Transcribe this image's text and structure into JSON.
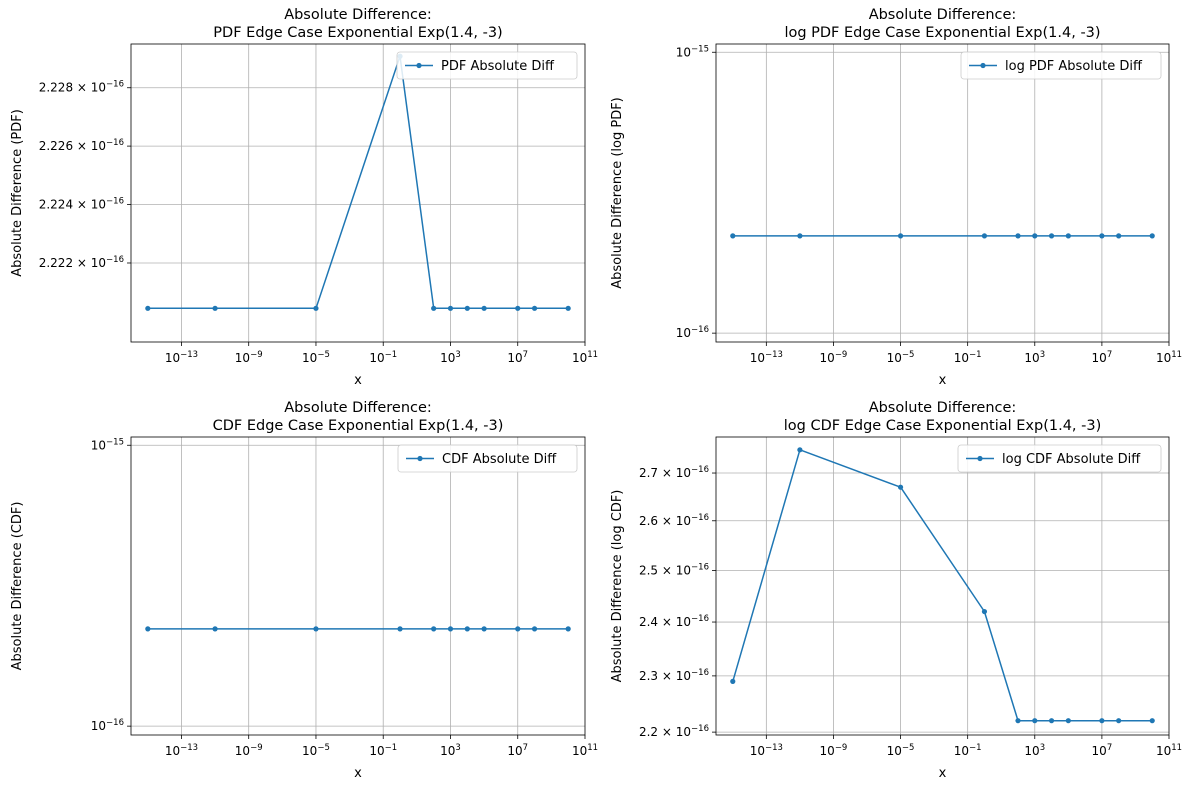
{
  "chart_data": [
    {
      "type": "line",
      "title_line1": "Absolute Difference:",
      "title_line2": "PDF Edge Case Exponential Exp(1.4, -3)",
      "xlabel": "x",
      "ylabel": "Absolute Difference (PDF)",
      "xscale": "log",
      "yscale": "log",
      "xlim": [
        1e-16,
        100000000000.0
      ],
      "ylim": [
        2.2193e-16,
        2.2295e-16
      ],
      "x_ticks": [
        {
          "value": 1e-13,
          "base": "10",
          "exp": "−13"
        },
        {
          "value": 1e-09,
          "base": "10",
          "exp": "−9"
        },
        {
          "value": 1e-05,
          "base": "10",
          "exp": "−5"
        },
        {
          "value": 0.1,
          "base": "10",
          "exp": "−1"
        },
        {
          "value": 1000,
          "base": "10",
          "exp": "3"
        },
        {
          "value": 10000000.0,
          "base": "10",
          "exp": "7"
        },
        {
          "value": 100000000000.0,
          "base": "10",
          "exp": "11"
        }
      ],
      "y_ticks": [
        {
          "value": 2.222e-16,
          "mant": "2.222 × ",
          "base": "10",
          "exp": "−16"
        },
        {
          "value": 2.224e-16,
          "mant": "2.224 × ",
          "base": "10",
          "exp": "−16"
        },
        {
          "value": 2.226e-16,
          "mant": "2.226 × ",
          "base": "10",
          "exp": "−16"
        },
        {
          "value": 2.228e-16,
          "mant": "2.228 × ",
          "base": "10",
          "exp": "−16"
        }
      ],
      "legend": "top-right",
      "grid": true,
      "series": [
        {
          "name": "PDF Absolute Diff",
          "color": "#1f77b4",
          "x": [
            1e-15,
            1e-11,
            1e-05,
            1,
            100,
            1000,
            10000,
            100000,
            10000000.0,
            100000000.0,
            10000000000.0
          ],
          "y": [
            2.22045e-16,
            2.22045e-16,
            2.22045e-16,
            2.22908e-16,
            2.22045e-16,
            2.22045e-16,
            2.22045e-16,
            2.22045e-16,
            2.22045e-16,
            2.22045e-16,
            2.22045e-16
          ]
        }
      ]
    },
    {
      "type": "line",
      "title_line1": "Absolute Difference:",
      "title_line2": "log PDF Edge Case Exponential Exp(1.4, -3)",
      "xlabel": "x",
      "ylabel": "Absolute Difference (log PDF)",
      "xscale": "log",
      "yscale": "log",
      "xlim": [
        1e-16,
        100000000000.0
      ],
      "ylim": [
        9.3e-17,
        1.07e-15
      ],
      "x_ticks": [
        {
          "value": 1e-13,
          "base": "10",
          "exp": "−13"
        },
        {
          "value": 1e-09,
          "base": "10",
          "exp": "−9"
        },
        {
          "value": 1e-05,
          "base": "10",
          "exp": "−5"
        },
        {
          "value": 0.1,
          "base": "10",
          "exp": "−1"
        },
        {
          "value": 1000,
          "base": "10",
          "exp": "3"
        },
        {
          "value": 10000000.0,
          "base": "10",
          "exp": "7"
        },
        {
          "value": 100000000000.0,
          "base": "10",
          "exp": "11"
        }
      ],
      "y_ticks": [
        {
          "value": 1e-16,
          "mant": "",
          "base": "10",
          "exp": "−16"
        },
        {
          "value": 1e-15,
          "mant": "",
          "base": "10",
          "exp": "−15"
        }
      ],
      "legend": "top-right",
      "grid": true,
      "series": [
        {
          "name": "log PDF Absolute Diff",
          "color": "#1f77b4",
          "x": [
            1e-15,
            1e-11,
            1e-05,
            1,
            100,
            1000,
            10000,
            100000,
            10000000.0,
            100000000.0,
            10000000000.0
          ],
          "y": [
            2.22e-16,
            2.22e-16,
            2.22e-16,
            2.22e-16,
            2.22e-16,
            2.22e-16,
            2.22e-16,
            2.22e-16,
            2.22e-16,
            2.22e-16,
            2.22e-16
          ]
        }
      ]
    },
    {
      "type": "line",
      "title_line1": "Absolute Difference:",
      "title_line2": "CDF Edge Case Exponential Exp(1.4, -3)",
      "xlabel": "x",
      "ylabel": "Absolute Difference (CDF)",
      "xscale": "log",
      "yscale": "log",
      "xlim": [
        1e-16,
        100000000000.0
      ],
      "ylim": [
        9.3e-17,
        1.07e-15
      ],
      "x_ticks": [
        {
          "value": 1e-13,
          "base": "10",
          "exp": "−13"
        },
        {
          "value": 1e-09,
          "base": "10",
          "exp": "−9"
        },
        {
          "value": 1e-05,
          "base": "10",
          "exp": "−5"
        },
        {
          "value": 0.1,
          "base": "10",
          "exp": "−1"
        },
        {
          "value": 1000,
          "base": "10",
          "exp": "3"
        },
        {
          "value": 10000000.0,
          "base": "10",
          "exp": "7"
        },
        {
          "value": 100000000000.0,
          "base": "10",
          "exp": "11"
        }
      ],
      "y_ticks": [
        {
          "value": 1e-16,
          "mant": "",
          "base": "10",
          "exp": "−16"
        },
        {
          "value": 1e-15,
          "mant": "",
          "base": "10",
          "exp": "−15"
        }
      ],
      "legend": "top-right",
      "grid": true,
      "series": [
        {
          "name": "CDF Absolute Diff",
          "color": "#1f77b4",
          "x": [
            1e-15,
            1e-11,
            1e-05,
            1,
            100,
            1000,
            10000,
            100000,
            10000000.0,
            100000000.0,
            10000000000.0
          ],
          "y": [
            2.22e-16,
            2.22e-16,
            2.22e-16,
            2.22e-16,
            2.22e-16,
            2.22e-16,
            2.22e-16,
            2.22e-16,
            2.22e-16,
            2.22e-16,
            2.22e-16
          ]
        }
      ]
    },
    {
      "type": "line",
      "title_line1": "Absolute Difference:",
      "title_line2": "log CDF Edge Case Exponential Exp(1.4, -3)",
      "xlabel": "x",
      "ylabel": "Absolute Difference (log CDF)",
      "xscale": "log",
      "yscale": "log",
      "xlim": [
        1e-16,
        100000000000.0
      ],
      "ylim": [
        2.195e-16,
        2.778e-16
      ],
      "x_ticks": [
        {
          "value": 1e-13,
          "base": "10",
          "exp": "−13"
        },
        {
          "value": 1e-09,
          "base": "10",
          "exp": "−9"
        },
        {
          "value": 1e-05,
          "base": "10",
          "exp": "−5"
        },
        {
          "value": 0.1,
          "base": "10",
          "exp": "−1"
        },
        {
          "value": 1000,
          "base": "10",
          "exp": "3"
        },
        {
          "value": 10000000.0,
          "base": "10",
          "exp": "7"
        },
        {
          "value": 100000000000.0,
          "base": "10",
          "exp": "11"
        }
      ],
      "y_ticks": [
        {
          "value": 2.2e-16,
          "mant": "2.2 × ",
          "base": "10",
          "exp": "−16"
        },
        {
          "value": 2.3e-16,
          "mant": "2.3 × ",
          "base": "10",
          "exp": "−16"
        },
        {
          "value": 2.4e-16,
          "mant": "2.4 × ",
          "base": "10",
          "exp": "−16"
        },
        {
          "value": 2.5e-16,
          "mant": "2.5 × ",
          "base": "10",
          "exp": "−16"
        },
        {
          "value": 2.6e-16,
          "mant": "2.6 × ",
          "base": "10",
          "exp": "−16"
        },
        {
          "value": 2.7e-16,
          "mant": "2.7 × ",
          "base": "10",
          "exp": "−16"
        }
      ],
      "legend": "top-right",
      "grid": true,
      "series": [
        {
          "name": "log CDF Absolute Diff",
          "color": "#1f77b4",
          "x": [
            1e-15,
            1e-11,
            1e-05,
            1,
            100,
            1000,
            10000,
            100000,
            10000000.0,
            100000000.0,
            10000000000.0
          ],
          "y": [
            2.29e-16,
            2.75e-16,
            2.67e-16,
            2.42e-16,
            2.22e-16,
            2.22e-16,
            2.22e-16,
            2.22e-16,
            2.22e-16,
            2.22e-16,
            2.22e-16
          ]
        }
      ]
    }
  ]
}
